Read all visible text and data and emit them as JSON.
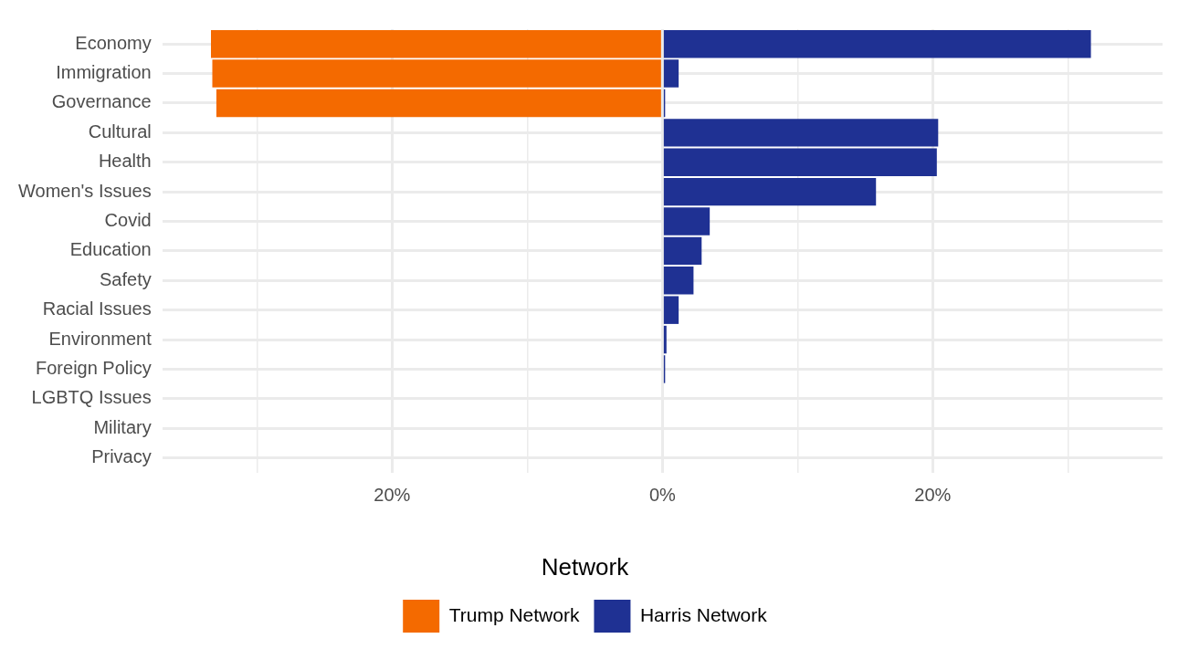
{
  "chart_data": {
    "type": "bar",
    "orientation": "horizontal",
    "stacked": true,
    "categories": [
      "Economy",
      "Immigration",
      "Governance",
      "Cultural",
      "Health",
      "Women's Issues",
      "Covid",
      "Education",
      "Safety",
      "Racial Issues",
      "Environment",
      "Foreign Policy",
      "LGBTQ Issues",
      "Military",
      "Privacy"
    ],
    "series": [
      {
        "name": "Trump Network",
        "color": "#f46a00",
        "values": [
          -33.4,
          -33.3,
          -33.0,
          null,
          null,
          null,
          null,
          null,
          null,
          null,
          null,
          null,
          null,
          null,
          null
        ]
      },
      {
        "name": "Harris Network",
        "color": "#1f3193",
        "values": [
          31.7,
          1.2,
          0.2,
          20.4,
          20.3,
          15.8,
          3.5,
          2.9,
          2.3,
          1.2,
          0.3,
          0.2,
          0,
          0,
          0
        ]
      }
    ],
    "xlim": [
      -37,
      37
    ],
    "xticks": [
      {
        "value": -30,
        "label": null
      },
      {
        "value": -20,
        "label": "20%"
      },
      {
        "value": -10,
        "label": null
      },
      {
        "value": 0,
        "label": "0%"
      },
      {
        "value": 10,
        "label": null
      },
      {
        "value": 20,
        "label": "20%"
      },
      {
        "value": 30,
        "label": null
      }
    ],
    "legend": "bottom",
    "legend_title": "Network",
    "grid": true
  }
}
